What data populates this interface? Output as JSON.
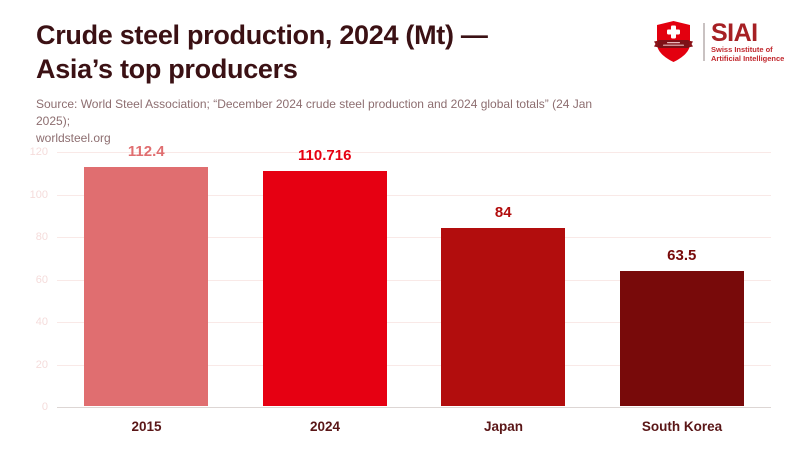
{
  "header": {
    "title_line1": "Crude steel production, 2024 (Mt) —",
    "title_line2": "Asia’s top producers",
    "source_line1": "Source: World Steel Association; “December 2024 crude steel production and 2024 global totals” (24 Jan 2025);",
    "source_line2": "worldsteel.org"
  },
  "logo": {
    "acronym": "SIAI",
    "subtitle_line1": "Swiss Institute of",
    "subtitle_line2": "Artificial Intelligence",
    "shield_icon": "swiss-shield-cross-icon",
    "brand_red": "#e3000f",
    "brand_dark_red": "#a62024"
  },
  "chart_data": {
    "type": "bar",
    "title": "Crude steel production, 2024 (Mt) — Asia’s top producers",
    "unit": "Mt",
    "categories": [
      "2015",
      "2024",
      "Japan",
      "South Korea"
    ],
    "values": [
      112.4,
      110.716,
      84,
      63.5
    ],
    "value_labels": [
      "112.4",
      "110.716",
      "84",
      "63.5"
    ],
    "bar_colors": [
      "#e06e70",
      "#e60012",
      "#b20d0d",
      "#780a0a"
    ],
    "xlabel": "",
    "ylabel": "",
    "ylim": [
      0,
      120
    ],
    "yticks": [
      0,
      20,
      40,
      60,
      80,
      100,
      120
    ],
    "grid": true,
    "legend": false
  },
  "colors": {
    "background": "#ffffff",
    "title": "#3b1114",
    "source": "#8d6e70",
    "tick_label": "#f5dcdb",
    "gridline": "#f9e9e7",
    "axis_line": "#ddd6d4",
    "category_label": "#5a1617"
  }
}
